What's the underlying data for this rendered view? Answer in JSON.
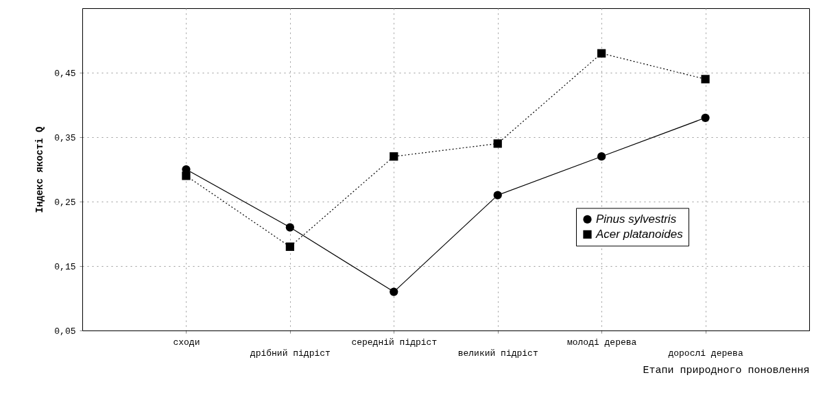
{
  "chart_data": {
    "type": "line",
    "xlabel": "Етапи природного поновлення",
    "ylabel": "Індекс якості Q",
    "categories": [
      "сходи",
      "дрібний підріст",
      "середній підріст",
      "великий підріст",
      "молоді дерева",
      "дорослі дерева"
    ],
    "series": [
      {
        "name": "Pinus sylvestris",
        "color": "#000000",
        "marker": "circle",
        "line_style": "solid",
        "values": [
          0.3,
          0.21,
          0.11,
          0.26,
          0.32,
          0.38
        ]
      },
      {
        "name": "Acer platanoides",
        "color": "#000000",
        "marker": "square",
        "line_style": "dotted",
        "values": [
          0.29,
          0.18,
          0.32,
          0.34,
          0.48,
          0.44
        ]
      }
    ],
    "ylim": [
      0.05,
      0.55
    ],
    "yticks": [
      {
        "value": 0.05,
        "label": "0,05"
      },
      {
        "value": 0.15,
        "label": "0,15"
      },
      {
        "value": 0.25,
        "label": "0,25"
      },
      {
        "value": 0.35,
        "label": "0,35"
      },
      {
        "value": 0.45,
        "label": "0,45"
      }
    ],
    "grid": true,
    "legend": "right"
  }
}
